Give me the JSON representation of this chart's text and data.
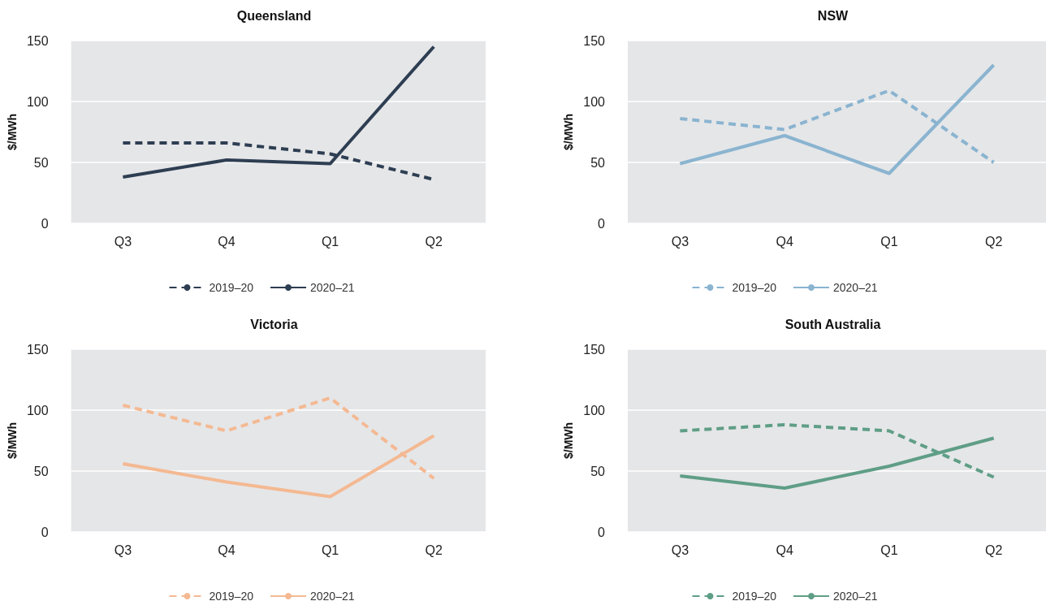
{
  "chart_data": [
    {
      "type": "line",
      "title": "Queensland",
      "ylabel": "$/MWh",
      "categories": [
        "Q3",
        "Q4",
        "Q1",
        "Q2"
      ],
      "ylim": [
        0,
        150
      ],
      "yticks": [
        0,
        50,
        100,
        150
      ],
      "grid": "y",
      "legend": "bottom",
      "marker": "none",
      "series": [
        {
          "name": "2019–20",
          "color": "#2e3e52",
          "line_style": "dashed",
          "values": [
            66,
            66,
            57,
            36
          ]
        },
        {
          "name": "2020–21",
          "color": "#2e3e52",
          "line_style": "solid",
          "values": [
            38,
            52,
            49,
            145
          ]
        }
      ]
    },
    {
      "type": "line",
      "title": "NSW",
      "ylabel": "$/MWh",
      "categories": [
        "Q3",
        "Q4",
        "Q1",
        "Q2"
      ],
      "ylim": [
        0,
        150
      ],
      "yticks": [
        0,
        50,
        100,
        150
      ],
      "grid": "y",
      "legend": "bottom",
      "marker": "none",
      "series": [
        {
          "name": "2019–20",
          "color": "#8ab4d0",
          "line_style": "dashed",
          "values": [
            86,
            77,
            109,
            50
          ]
        },
        {
          "name": "2020–21",
          "color": "#8ab4d0",
          "line_style": "solid",
          "values": [
            49,
            72,
            41,
            130
          ]
        }
      ]
    },
    {
      "type": "line",
      "title": "Victoria",
      "ylabel": "$/MWh",
      "categories": [
        "Q3",
        "Q4",
        "Q1",
        "Q2"
      ],
      "ylim": [
        0,
        150
      ],
      "yticks": [
        0,
        50,
        100,
        150
      ],
      "grid": "y",
      "legend": "bottom",
      "marker": "none",
      "series": [
        {
          "name": "2019–20",
          "color": "#f4b992",
          "line_style": "dashed",
          "values": [
            104,
            83,
            110,
            44
          ]
        },
        {
          "name": "2020–21",
          "color": "#f4b992",
          "line_style": "solid",
          "values": [
            56,
            41,
            29,
            79
          ]
        }
      ]
    },
    {
      "type": "line",
      "title": "South Australia",
      "ylabel": "$/MWh",
      "categories": [
        "Q3",
        "Q4",
        "Q1",
        "Q2"
      ],
      "ylim": [
        0,
        150
      ],
      "yticks": [
        0,
        50,
        100,
        150
      ],
      "grid": "y",
      "legend": "bottom",
      "marker": "none",
      "series": [
        {
          "name": "2019–20",
          "color": "#5f9e86",
          "line_style": "dashed",
          "values": [
            83,
            88,
            83,
            45
          ]
        },
        {
          "name": "2020–21",
          "color": "#5f9e86",
          "line_style": "solid",
          "values": [
            46,
            36,
            54,
            77
          ]
        }
      ]
    }
  ]
}
